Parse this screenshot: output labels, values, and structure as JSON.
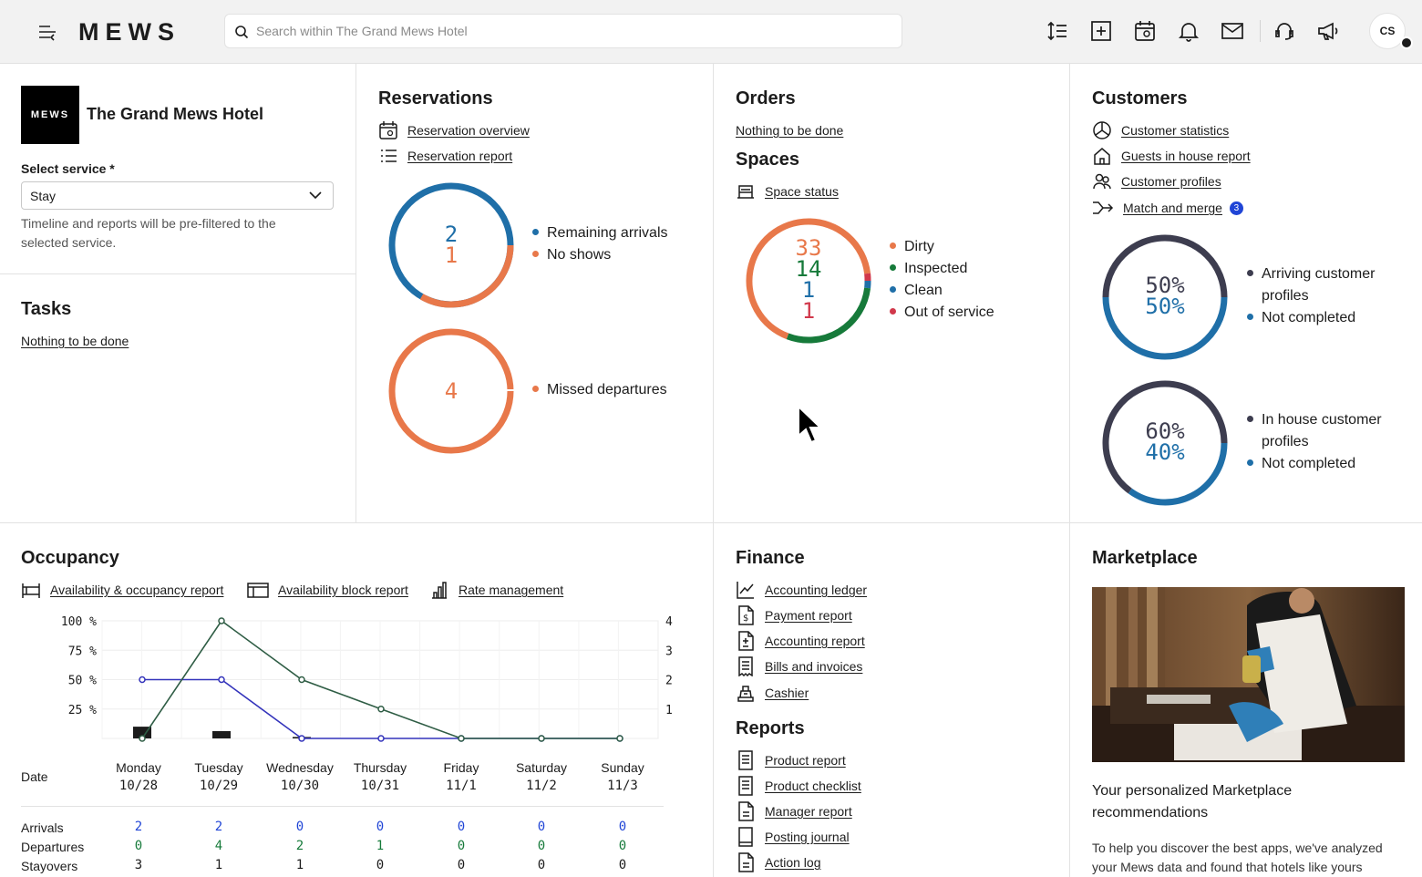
{
  "topbar": {
    "brand": "MEWS",
    "search_placeholder": "Search within The Grand Mews Hotel",
    "avatar_initials": "CS"
  },
  "hotel": {
    "logo_text": "MEWS",
    "name": "The Grand Mews Hotel",
    "service_label": "Select service *",
    "service_value": "Stay",
    "service_hint": "Timeline and reports will be pre-filtered to the selected service."
  },
  "tasks": {
    "title": "Tasks",
    "empty_link": "Nothing to be done"
  },
  "reservations": {
    "title": "Reservations",
    "links": [
      "Reservation overview",
      "Reservation report"
    ],
    "chart1": {
      "values": [
        "2",
        "1"
      ],
      "legend": [
        "Remaining arrivals",
        "No shows"
      ]
    },
    "chart2": {
      "values": [
        "4"
      ],
      "legend": [
        "Missed departures"
      ]
    }
  },
  "orders": {
    "title": "Orders",
    "empty_link": "Nothing to be done"
  },
  "spaces": {
    "title": "Spaces",
    "link": "Space status",
    "values": [
      "33",
      "14",
      "1",
      "1"
    ],
    "legend": [
      "Dirty",
      "Inspected",
      "Clean",
      "Out of service"
    ]
  },
  "customers": {
    "title": "Customers",
    "links": [
      "Customer statistics",
      "Guests in house report",
      "Customer profiles",
      "Match and merge"
    ],
    "merge_badge": "3",
    "chart1": {
      "values": [
        "50%",
        "50%"
      ],
      "legend": [
        "Arriving customer profiles",
        "Not completed"
      ]
    },
    "chart2": {
      "values": [
        "60%",
        "40%"
      ],
      "legend": [
        "In house customer profiles",
        "Not completed"
      ]
    }
  },
  "occupancy": {
    "title": "Occupancy",
    "links": [
      "Availability & occupancy report",
      "Availability block report",
      "Rate management"
    ],
    "date_label": "Date",
    "days": [
      {
        "name": "Monday",
        "date": "10/28"
      },
      {
        "name": "Tuesday",
        "date": "10/29"
      },
      {
        "name": "Wednesday",
        "date": "10/30"
      },
      {
        "name": "Thursday",
        "date": "10/31"
      },
      {
        "name": "Friday",
        "date": "11/1"
      },
      {
        "name": "Saturday",
        "date": "11/2"
      },
      {
        "name": "Sunday",
        "date": "11/3"
      }
    ],
    "row_labels": [
      "Arrivals",
      "Departures",
      "Stayovers"
    ],
    "arrivals": [
      "2",
      "2",
      "0",
      "0",
      "0",
      "0",
      "0"
    ],
    "departures": [
      "0",
      "4",
      "2",
      "1",
      "0",
      "0",
      "0"
    ],
    "stayovers": [
      "3",
      "1",
      "1",
      "0",
      "0",
      "0",
      "0"
    ]
  },
  "chart_data": {
    "type": "line",
    "categories": [
      "Mon 10/28",
      "Tue 10/29",
      "Wed 10/30",
      "Thu 10/31",
      "Fri 11/1",
      "Sat 11/2",
      "Sun 11/3"
    ],
    "left_axis_ticks": [
      "100 %",
      "75 %",
      "50 %",
      "25 %"
    ],
    "right_axis_ticks": [
      "4",
      "3",
      "2",
      "1"
    ],
    "ylim_left": [
      0,
      100
    ],
    "ylim_right": [
      0,
      4
    ],
    "series": [
      {
        "name": "Occupancy",
        "axis": "left",
        "unit": "%",
        "type": "line",
        "color": "#3333bb",
        "values": [
          50,
          50,
          0,
          0,
          0,
          0,
          0
        ]
      },
      {
        "name": "Departures",
        "axis": "right",
        "type": "line",
        "color": "#2f5d45",
        "values": [
          0,
          4,
          2,
          1,
          0,
          0,
          0
        ]
      },
      {
        "name": "Block",
        "axis": "right",
        "type": "bar",
        "color": "#1c1c1c",
        "values": [
          0.4,
          0.25,
          0.05,
          0,
          0,
          0,
          0
        ]
      }
    ]
  },
  "finance": {
    "title": "Finance",
    "links": [
      "Accounting ledger",
      "Payment report",
      "Accounting report",
      "Bills and invoices",
      "Cashier"
    ]
  },
  "reports": {
    "title": "Reports",
    "links": [
      "Product report",
      "Product checklist",
      "Manager report",
      "Posting journal",
      "Action log"
    ]
  },
  "marketplace": {
    "title": "Marketplace",
    "heading": "Your personalized Marketplace recommendations",
    "text": "To help you discover the best apps, we've analyzed your Mews data and found that hotels like yours"
  },
  "colors": {
    "blue": "#1f6fa8",
    "orange": "#e8784a",
    "green": "#167a3a",
    "red": "#d1384b",
    "dark": "#3d3d4f"
  }
}
